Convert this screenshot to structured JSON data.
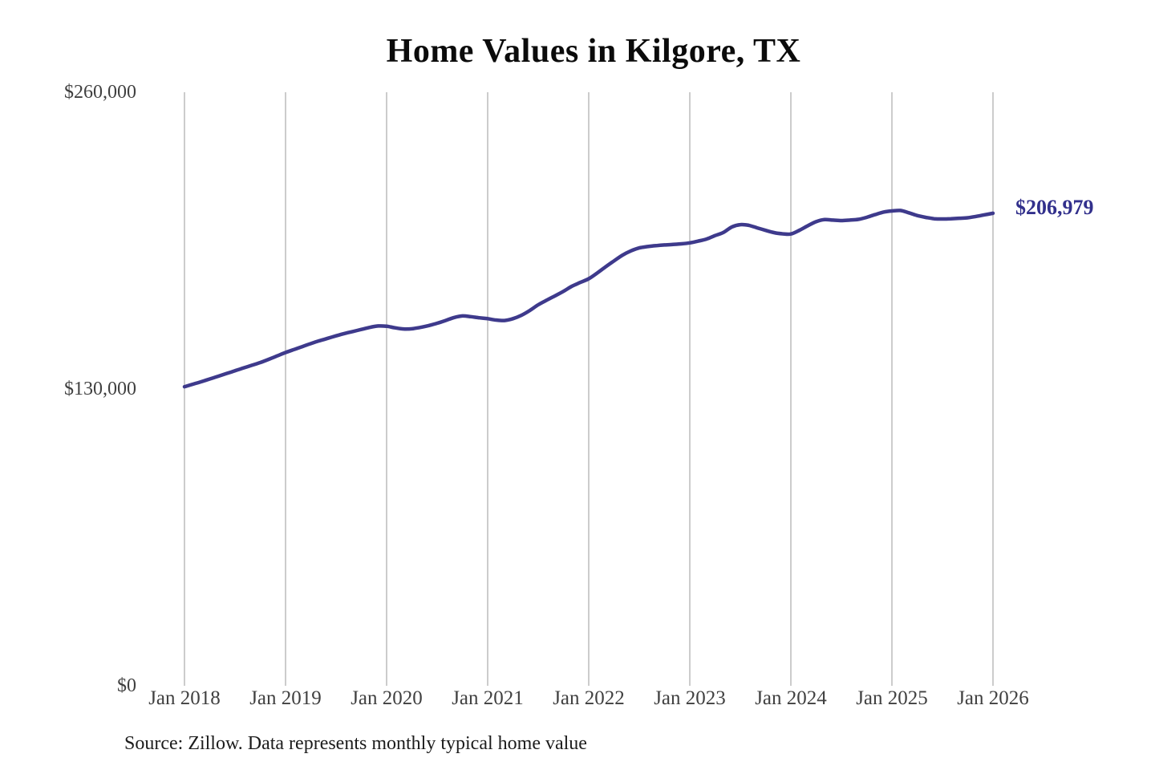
{
  "title": "Home Values in Kilgore, TX",
  "annotation": {
    "final_value_label": "$206,979"
  },
  "source_note": "Source: Zillow. Data represents monthly typical home value",
  "colors": {
    "line": "#3e3a8c",
    "annotation": "#32308c",
    "gridline": "#cccccc",
    "axis_text": "#404040",
    "title_text": "#0b0b0b",
    "source_text": "#1c1c1c",
    "background": "#ffffff"
  },
  "y_axis": {
    "max": 260000,
    "ticks": [
      {
        "value": 0,
        "label": "$0"
      },
      {
        "value": 130000,
        "label": "$130,000"
      },
      {
        "value": 260000,
        "label": "$260,000"
      }
    ]
  },
  "x_axis": {
    "tick_labels": [
      "Jan 2018",
      "Jan 2019",
      "Jan 2020",
      "Jan 2021",
      "Jan 2022",
      "Jan 2023",
      "Jan 2024",
      "Jan 2025",
      "Jan 2026"
    ],
    "months_per_tick": 12
  },
  "chart_data": {
    "type": "line",
    "title": "Home Values in Kilgore, TX",
    "series_name": "Monthly typical home value",
    "xlabel": "",
    "ylabel": "",
    "ylim": [
      0,
      260000
    ],
    "grid": "vertical-yearly",
    "legend": "none",
    "final_value": 206979,
    "x": [
      "2018-01",
      "2018-02",
      "2018-03",
      "2018-04",
      "2018-05",
      "2018-06",
      "2018-07",
      "2018-08",
      "2018-09",
      "2018-10",
      "2018-11",
      "2018-12",
      "2019-01",
      "2019-02",
      "2019-03",
      "2019-04",
      "2019-05",
      "2019-06",
      "2019-07",
      "2019-08",
      "2019-09",
      "2019-10",
      "2019-11",
      "2019-12",
      "2020-01",
      "2020-02",
      "2020-03",
      "2020-04",
      "2020-05",
      "2020-06",
      "2020-07",
      "2020-08",
      "2020-09",
      "2020-10",
      "2020-11",
      "2020-12",
      "2021-01",
      "2021-02",
      "2021-03",
      "2021-04",
      "2021-05",
      "2021-06",
      "2021-07",
      "2021-08",
      "2021-09",
      "2021-10",
      "2021-11",
      "2021-12",
      "2022-01",
      "2022-02",
      "2022-03",
      "2022-04",
      "2022-05",
      "2022-06",
      "2022-07",
      "2022-08",
      "2022-09",
      "2022-10",
      "2022-11",
      "2022-12",
      "2023-01",
      "2023-02",
      "2023-03",
      "2023-04",
      "2023-05",
      "2023-06",
      "2023-07",
      "2023-08",
      "2023-09",
      "2023-10",
      "2023-11",
      "2023-12",
      "2024-01",
      "2024-02",
      "2024-03",
      "2024-04",
      "2024-05",
      "2024-06",
      "2024-07",
      "2024-08",
      "2024-09",
      "2024-10",
      "2024-11",
      "2024-12",
      "2025-01",
      "2025-02",
      "2025-03",
      "2025-04",
      "2025-05",
      "2025-06",
      "2025-07",
      "2025-08",
      "2025-09",
      "2025-10",
      "2025-11",
      "2025-12",
      "2026-01"
    ],
    "values": [
      131000,
      132100,
      133200,
      134400,
      135600,
      136800,
      138000,
      139200,
      140400,
      141600,
      143000,
      144500,
      146000,
      147300,
      148600,
      149900,
      151100,
      152200,
      153300,
      154300,
      155200,
      156100,
      157000,
      157600,
      157500,
      156800,
      156300,
      156400,
      157000,
      157800,
      158800,
      160000,
      161300,
      162000,
      161700,
      161200,
      160800,
      160200,
      160000,
      160800,
      162300,
      164400,
      166900,
      168900,
      170800,
      172800,
      175000,
      176700,
      178300,
      180800,
      183500,
      186100,
      188600,
      190500,
      191800,
      192400,
      192800,
      193100,
      193300,
      193600,
      194000,
      194800,
      195700,
      197200,
      198600,
      201000,
      202000,
      201700,
      200600,
      199500,
      198500,
      198000,
      197900,
      199500,
      201500,
      203300,
      204200,
      204000,
      203800,
      204000,
      204300,
      205200,
      206400,
      207500,
      208000,
      208200,
      207200,
      206000,
      205200,
      204600,
      204500,
      204600,
      204800,
      205000,
      205600,
      206300,
      206979
    ]
  }
}
